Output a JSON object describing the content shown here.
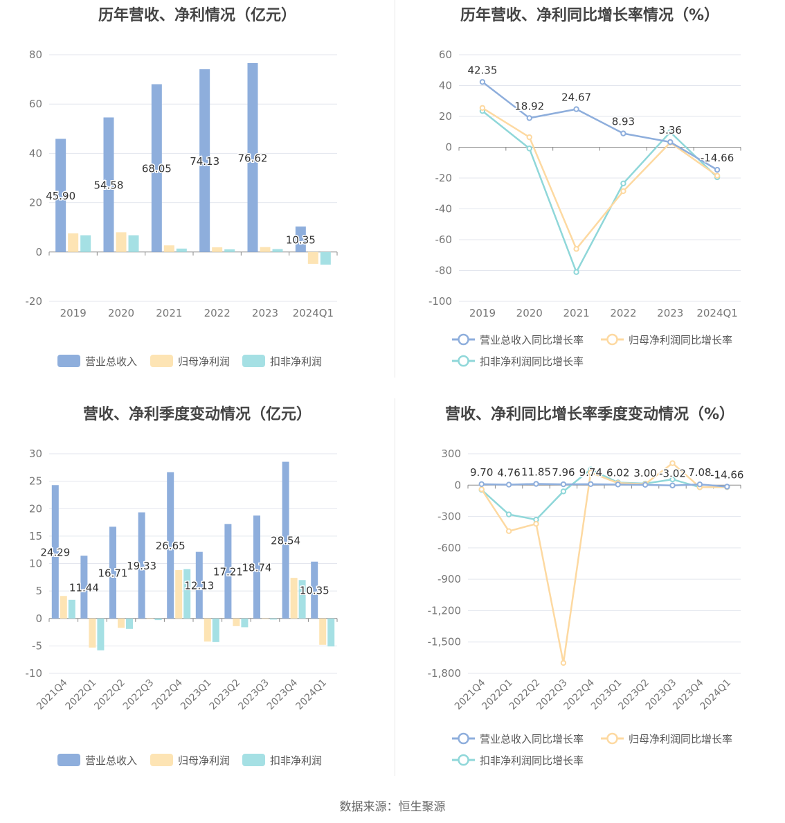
{
  "footer": "数据来源：恒生聚源",
  "colors": {
    "revenue": "#8eaedc",
    "netprofit": "#fde4b4",
    "deducted": "#a5e0e4",
    "rev_line": "#8eaedc",
    "np_line": "#fdd9a1",
    "ded_line": "#8fd7d9"
  },
  "chart_data": [
    {
      "type": "bar",
      "title": "历年营收、净利情况（亿元）",
      "categories": [
        "2019",
        "2020",
        "2021",
        "2022",
        "2023",
        "2024Q1"
      ],
      "ylim": [
        -20,
        80
      ],
      "yticks": [
        "80",
        "60",
        "40",
        "20",
        "0",
        "-20"
      ],
      "yticks_values": [
        80,
        60,
        40,
        20,
        0,
        -20
      ],
      "series": [
        {
          "name": "营业总收入",
          "values": [
            45.9,
            54.58,
            68.05,
            74.13,
            76.62,
            10.35
          ]
        },
        {
          "name": "归母净利润",
          "values": [
            7.6,
            8.0,
            2.7,
            1.9,
            2.0,
            -4.8
          ]
        },
        {
          "name": "扣非净利润",
          "values": [
            6.8,
            6.8,
            1.4,
            1.1,
            1.2,
            -5.1
          ]
        }
      ],
      "data_labels": [
        "45.90",
        "54.58",
        "68.05",
        "74.13",
        "76.62",
        "10.35"
      ],
      "legend": "bottom"
    },
    {
      "type": "line",
      "title": "历年营收、净利同比增长率情况（%）",
      "categories": [
        "2019",
        "2020",
        "2021",
        "2022",
        "2023",
        "2024Q1"
      ],
      "ylim": [
        -100,
        60
      ],
      "yticks": [
        "60",
        "40",
        "20",
        "0",
        "-20",
        "-40",
        "-60",
        "-80",
        "-100"
      ],
      "yticks_values": [
        60,
        40,
        20,
        0,
        -20,
        -40,
        -60,
        -80,
        -100
      ],
      "series": [
        {
          "name": "营业总收入同比增长率",
          "values": [
            42.35,
            18.92,
            24.67,
            8.93,
            3.36,
            -14.66
          ]
        },
        {
          "name": "归母净利润同比增长率",
          "values": [
            25.5,
            6.5,
            -66.0,
            -28.5,
            3.0,
            -18.5
          ]
        },
        {
          "name": "扣非净利润同比增长率",
          "values": [
            23.5,
            -0.8,
            -81.0,
            -23.5,
            9.8,
            -19.5
          ]
        }
      ],
      "data_labels": [
        "42.35",
        "18.92",
        "24.67",
        "8.93",
        "3.36",
        "-14.66"
      ],
      "legend": "bottom"
    },
    {
      "type": "bar",
      "title": "营收、净利季度变动情况（亿元）",
      "categories": [
        "2021Q4",
        "2022Q1",
        "2022Q2",
        "2022Q3",
        "2022Q4",
        "2023Q1",
        "2023Q2",
        "2023Q3",
        "2023Q4",
        "2024Q1"
      ],
      "ylim": [
        -10,
        30
      ],
      "yticks": [
        "30",
        "25",
        "20",
        "15",
        "10",
        "5",
        "0",
        "-5",
        "-10"
      ],
      "yticks_values": [
        30,
        25,
        20,
        15,
        10,
        5,
        0,
        -5,
        -10
      ],
      "series": [
        {
          "name": "营业总收入",
          "values": [
            24.29,
            11.44,
            16.71,
            19.33,
            26.65,
            12.13,
            17.21,
            18.74,
            28.54,
            10.35
          ]
        },
        {
          "name": "归母净利润",
          "values": [
            4.1,
            -5.3,
            -1.7,
            -0.1,
            8.8,
            -4.2,
            -1.4,
            -0.1,
            7.4,
            -4.8
          ]
        },
        {
          "name": "扣非净利润",
          "values": [
            3.4,
            -5.8,
            -1.9,
            -0.3,
            9.0,
            -4.3,
            -1.6,
            -0.2,
            7.0,
            -5.1
          ]
        }
      ],
      "data_labels": [
        "24.29",
        "11.44",
        "16.71",
        "19.33",
        "26.65",
        "12.13",
        "17.21",
        "18.74",
        "28.54",
        "10.35"
      ],
      "legend": "bottom"
    },
    {
      "type": "line",
      "title": "营收、净利同比增长率季度变动情况（%）",
      "categories": [
        "2021Q4",
        "2022Q1",
        "2022Q2",
        "2022Q3",
        "2022Q4",
        "2023Q1",
        "2023Q2",
        "2023Q3",
        "2023Q4",
        "2024Q1"
      ],
      "ylim": [
        -1800,
        300
      ],
      "yticks": [
        "300",
        "0",
        "-300",
        "-600",
        "-900",
        "-1,200",
        "-1,500",
        "-1,800"
      ],
      "yticks_values": [
        300,
        0,
        -300,
        -600,
        -900,
        -1200,
        -1500,
        -1800
      ],
      "series": [
        {
          "name": "营业总收入同比增长率",
          "values": [
            9.7,
            4.76,
            11.85,
            7.96,
            9.74,
            6.02,
            3.0,
            -3.02,
            7.08,
            -14.66
          ]
        },
        {
          "name": "归母净利润同比增长率",
          "values": [
            -40,
            -440,
            -370,
            -1700,
            120,
            20,
            10,
            210,
            -20,
            -18
          ]
        },
        {
          "name": "扣非净利润同比增长率",
          "values": [
            -45,
            -280,
            -330,
            -60,
            150,
            25,
            15,
            55,
            -20,
            -19
          ]
        }
      ],
      "data_labels": [
        "9.70",
        "4.76",
        "11.85",
        "7.96",
        "9.74",
        "6.02",
        "3.00",
        "-3.02",
        "7.08",
        "-14.66"
      ],
      "legend": "bottom"
    }
  ]
}
